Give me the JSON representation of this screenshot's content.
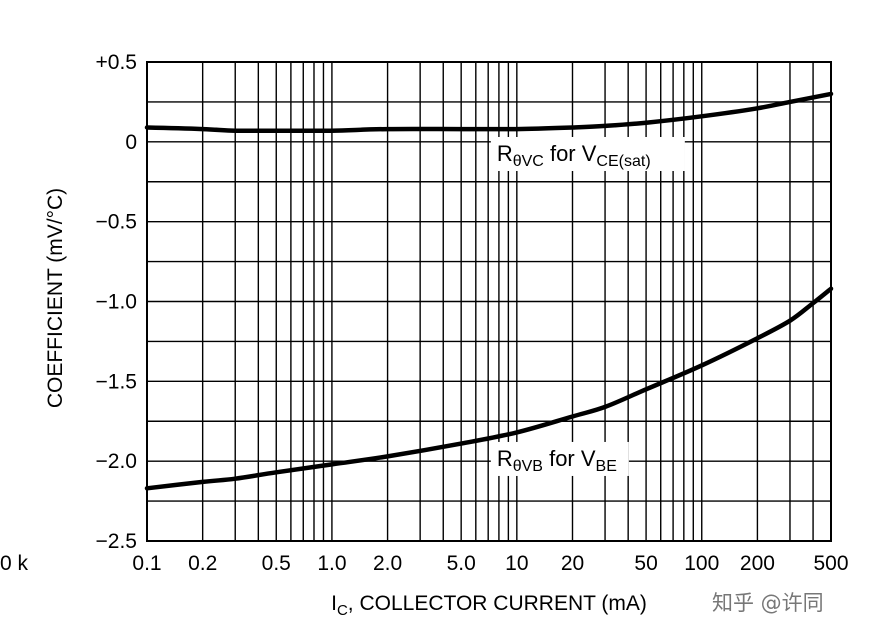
{
  "chart_data": {
    "type": "line",
    "title": "",
    "xlabel": {
      "main": "I",
      "sub": "C",
      "rest": ", COLLECTOR CURRENT (mA)"
    },
    "ylabel": "COEFFICIENT (mV/°C)",
    "x_scale": "log",
    "xlim": [
      0.1,
      500
    ],
    "ylim": [
      -2.5,
      0.5
    ],
    "x_ticks": [
      {
        "value": 0.1,
        "label": "0.1"
      },
      {
        "value": 0.2,
        "label": "0.2"
      },
      {
        "value": 0.5,
        "label": "0.5"
      },
      {
        "value": 1.0,
        "label": "1.0"
      },
      {
        "value": 2.0,
        "label": "2.0"
      },
      {
        "value": 5.0,
        "label": "5.0"
      },
      {
        "value": 10,
        "label": "10"
      },
      {
        "value": 20,
        "label": "20"
      },
      {
        "value": 50,
        "label": "50"
      },
      {
        "value": 100,
        "label": "100"
      },
      {
        "value": 200,
        "label": "200"
      },
      {
        "value": 500,
        "label": "500"
      }
    ],
    "y_ticks": [
      {
        "value": 0.5,
        "label": "+0.5"
      },
      {
        "value": 0,
        "label": "0"
      },
      {
        "value": -0.5,
        "label": "−0.5"
      },
      {
        "value": -1.0,
        "label": "−1.0"
      },
      {
        "value": -1.5,
        "label": "−1.5"
      },
      {
        "value": -2.0,
        "label": "−2.0"
      },
      {
        "value": -2.5,
        "label": "−2.5"
      }
    ],
    "grid": true,
    "series": [
      {
        "label": {
          "main": "R",
          "sub": "θVC",
          "mid": " for V",
          "sub2": "CE(sat)"
        },
        "x": [
          0.1,
          0.2,
          0.3,
          0.5,
          1,
          2,
          5,
          10,
          20,
          30,
          50,
          100,
          200,
          300,
          500
        ],
        "y": [
          0.09,
          0.08,
          0.07,
          0.07,
          0.07,
          0.08,
          0.08,
          0.08,
          0.09,
          0.1,
          0.12,
          0.16,
          0.21,
          0.25,
          0.3
        ]
      },
      {
        "label": {
          "main": "R",
          "sub": "θVB",
          "mid": " for V",
          "sub2": "BE"
        },
        "x": [
          0.1,
          0.2,
          0.3,
          0.5,
          1,
          2,
          5,
          10,
          20,
          30,
          50,
          100,
          200,
          300,
          400,
          500
        ],
        "y": [
          -2.17,
          -2.13,
          -2.11,
          -2.07,
          -2.02,
          -1.97,
          -1.89,
          -1.82,
          -1.72,
          -1.66,
          -1.55,
          -1.4,
          -1.23,
          -1.12,
          -1.01,
          -0.92
        ]
      }
    ]
  },
  "left_fragment": "0 k",
  "watermark": "知乎 @许同"
}
